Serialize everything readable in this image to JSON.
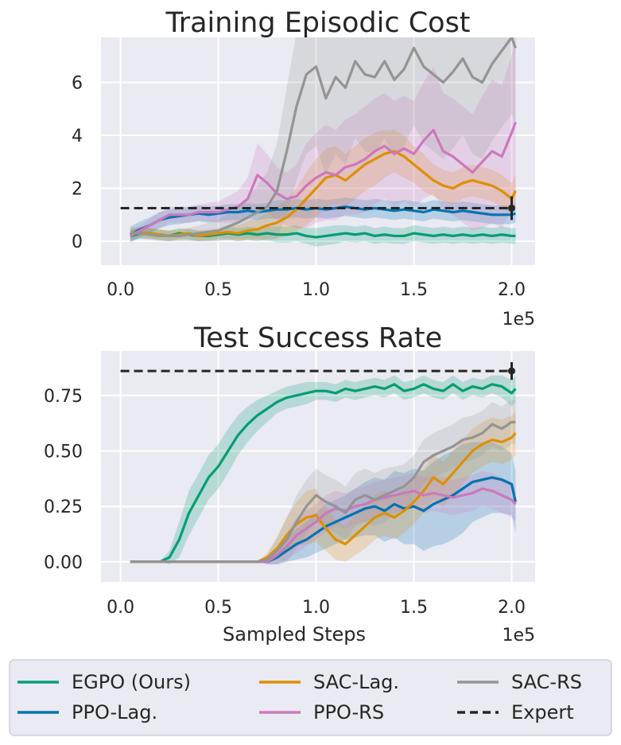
{
  "chart_data": [
    {
      "type": "line",
      "title": "Training Episodic Cost",
      "xlabel": "",
      "ylabel": "",
      "x_offset_label": "1e5",
      "xlim": [
        -0.1,
        2.12
      ],
      "ylim": [
        -0.9,
        7.7
      ],
      "x_ticks": [
        0.0,
        0.5,
        1.0,
        1.5,
        2.0
      ],
      "x_tick_labels": [
        "0.0",
        "0.5",
        "1.0",
        "1.5",
        "2.0"
      ],
      "y_ticks": [
        0,
        2,
        4,
        6
      ],
      "y_tick_labels": [
        "0",
        "2",
        "4",
        "6"
      ],
      "grid": true,
      "x": [
        0.05,
        0.1,
        0.15,
        0.2,
        0.25,
        0.3,
        0.35,
        0.4,
        0.45,
        0.5,
        0.55,
        0.6,
        0.65,
        0.7,
        0.75,
        0.8,
        0.85,
        0.9,
        0.95,
        1.0,
        1.05,
        1.1,
        1.15,
        1.2,
        1.25,
        1.3,
        1.35,
        1.4,
        1.45,
        1.5,
        1.55,
        1.6,
        1.65,
        1.7,
        1.75,
        1.8,
        1.85,
        1.9,
        1.95,
        2.0,
        2.02
      ],
      "series": [
        {
          "name": "EGPO (Ours)",
          "color": "#029e73",
          "values": [
            0.2,
            0.3,
            0.3,
            0.25,
            0.2,
            0.3,
            0.25,
            0.2,
            0.2,
            0.25,
            0.3,
            0.25,
            0.3,
            0.25,
            0.3,
            0.25,
            0.25,
            0.3,
            0.2,
            0.15,
            0.2,
            0.25,
            0.3,
            0.25,
            0.3,
            0.2,
            0.25,
            0.2,
            0.2,
            0.3,
            0.25,
            0.2,
            0.25,
            0.2,
            0.25,
            0.2,
            0.25,
            0.2,
            0.25,
            0.2,
            0.2
          ],
          "band": [
            0.2,
            0.2,
            0.2,
            0.2,
            0.2,
            0.2,
            0.2,
            0.2,
            0.2,
            0.2,
            0.25,
            0.25,
            0.25,
            0.25,
            0.25,
            0.3,
            0.3,
            0.3,
            0.3,
            0.35,
            0.35,
            0.35,
            0.3,
            0.3,
            0.3,
            0.3,
            0.3,
            0.3,
            0.3,
            0.3,
            0.3,
            0.3,
            0.3,
            0.3,
            0.3,
            0.3,
            0.3,
            0.3,
            0.3,
            0.3,
            0.3
          ]
        },
        {
          "name": "PPO-Lag.",
          "color": "#0173b2",
          "values": [
            0.25,
            0.45,
            0.6,
            0.8,
            0.9,
            0.95,
            1.0,
            1.05,
            1.0,
            1.05,
            1.1,
            1.1,
            1.15,
            1.1,
            1.15,
            1.2,
            1.2,
            1.25,
            1.2,
            1.25,
            1.2,
            1.25,
            1.3,
            1.25,
            1.2,
            1.25,
            1.2,
            1.15,
            1.2,
            1.15,
            1.1,
            1.2,
            1.15,
            1.1,
            1.15,
            1.1,
            1.05,
            1.0,
            1.0,
            1.0,
            1.05
          ],
          "band": [
            0.3,
            0.3,
            0.3,
            0.3,
            0.3,
            0.3,
            0.3,
            0.3,
            0.3,
            0.3,
            0.3,
            0.3,
            0.3,
            0.3,
            0.3,
            0.35,
            0.35,
            0.35,
            0.35,
            0.35,
            0.35,
            0.35,
            0.35,
            0.35,
            0.35,
            0.35,
            0.35,
            0.35,
            0.35,
            0.35,
            0.35,
            0.35,
            0.35,
            0.35,
            0.35,
            0.35,
            0.35,
            0.35,
            0.35,
            0.35,
            0.35
          ]
        },
        {
          "name": "SAC-Lag.",
          "color": "#de8f05",
          "values": [
            0.3,
            0.35,
            0.3,
            0.25,
            0.2,
            0.25,
            0.3,
            0.2,
            0.25,
            0.3,
            0.35,
            0.3,
            0.4,
            0.45,
            0.6,
            0.7,
            0.9,
            1.2,
            1.6,
            2.0,
            2.4,
            2.5,
            2.3,
            2.6,
            2.9,
            3.1,
            3.3,
            3.4,
            3.2,
            2.9,
            2.6,
            2.3,
            2.1,
            2.0,
            2.2,
            2.3,
            2.2,
            2.1,
            1.9,
            1.6,
            1.9
          ],
          "band": [
            0.2,
            0.2,
            0.2,
            0.2,
            0.2,
            0.2,
            0.2,
            0.2,
            0.2,
            0.2,
            0.25,
            0.3,
            0.35,
            0.4,
            0.5,
            0.6,
            0.7,
            0.8,
            1.0,
            1.1,
            1.1,
            1.1,
            1.0,
            1.0,
            1.0,
            1.0,
            0.9,
            0.8,
            0.8,
            0.7,
            0.7,
            0.6,
            0.6,
            0.6,
            0.6,
            0.6,
            0.6,
            0.6,
            0.6,
            0.6,
            0.6
          ]
        },
        {
          "name": "PPO-RS",
          "color": "#cc78bc",
          "values": [
            0.2,
            0.4,
            0.6,
            0.8,
            1.0,
            1.0,
            1.0,
            1.1,
            1.1,
            1.1,
            1.2,
            1.3,
            1.6,
            2.5,
            2.2,
            1.8,
            1.6,
            1.7,
            2.1,
            2.4,
            2.6,
            2.5,
            2.8,
            2.9,
            3.1,
            3.4,
            3.6,
            3.3,
            3.5,
            3.3,
            3.8,
            4.2,
            3.4,
            3.2,
            2.9,
            2.6,
            3.0,
            3.4,
            3.2,
            4.1,
            4.5
          ],
          "band": [
            0.2,
            0.2,
            0.25,
            0.3,
            0.3,
            0.3,
            0.3,
            0.3,
            0.35,
            0.4,
            0.5,
            0.6,
            0.8,
            1.2,
            1.1,
            1.0,
            1.0,
            1.2,
            1.6,
            1.7,
            1.8,
            1.7,
            1.8,
            1.9,
            2.0,
            2.0,
            2.0,
            2.0,
            2.0,
            2.0,
            2.2,
            2.4,
            2.2,
            2.2,
            2.2,
            2.2,
            2.5,
            2.7,
            2.7,
            2.9,
            3.2
          ]
        },
        {
          "name": "SAC-RS",
          "color": "#949494",
          "values": [
            0.3,
            0.3,
            0.25,
            0.2,
            0.2,
            0.2,
            0.25,
            0.3,
            0.35,
            0.4,
            0.55,
            0.7,
            0.9,
            1.1,
            1.3,
            1.9,
            3.4,
            5.1,
            6.3,
            6.6,
            5.4,
            6.2,
            5.8,
            6.8,
            6.3,
            6.2,
            6.8,
            6.1,
            6.5,
            7.3,
            6.6,
            6.3,
            6.0,
            6.4,
            6.9,
            6.2,
            6.0,
            6.7,
            7.2,
            7.7,
            7.3
          ],
          "band": [
            0.2,
            0.2,
            0.2,
            0.2,
            0.2,
            0.2,
            0.25,
            0.3,
            0.35,
            0.4,
            0.5,
            0.6,
            0.8,
            1.0,
            1.3,
            1.8,
            2.4,
            2.8,
            3.0,
            3.0,
            2.9,
            2.9,
            2.9,
            2.9,
            2.9,
            2.9,
            2.9,
            2.9,
            2.9,
            2.9,
            2.9,
            2.9,
            2.9,
            2.9,
            2.9,
            2.9,
            2.9,
            2.9,
            2.9,
            2.9,
            2.9
          ]
        }
      ],
      "expert": {
        "name": "Expert",
        "value": 1.25,
        "x_start": 0.0,
        "x_end": 2.0,
        "err_low": 0.8,
        "err_high": 1.7
      }
    },
    {
      "type": "line",
      "title": "Test Success Rate",
      "xlabel": "Sampled Steps",
      "ylabel": "",
      "x_offset_label": "1e5",
      "xlim": [
        -0.1,
        2.12
      ],
      "ylim": [
        -0.09,
        0.95
      ],
      "x_ticks": [
        0.0,
        0.5,
        1.0,
        1.5,
        2.0
      ],
      "x_tick_labels": [
        "0.0",
        "0.5",
        "1.0",
        "1.5",
        "2.0"
      ],
      "y_ticks": [
        0.0,
        0.25,
        0.5,
        0.75
      ],
      "y_tick_labels": [
        "0.00",
        "0.25",
        "0.50",
        "0.75"
      ],
      "grid": true,
      "x": [
        0.05,
        0.1,
        0.15,
        0.2,
        0.25,
        0.3,
        0.35,
        0.4,
        0.45,
        0.5,
        0.55,
        0.6,
        0.65,
        0.7,
        0.75,
        0.8,
        0.85,
        0.9,
        0.95,
        1.0,
        1.05,
        1.1,
        1.15,
        1.2,
        1.25,
        1.3,
        1.35,
        1.4,
        1.45,
        1.5,
        1.55,
        1.6,
        1.65,
        1.7,
        1.75,
        1.8,
        1.85,
        1.9,
        1.95,
        2.0,
        2.02
      ],
      "series": [
        {
          "name": "EGPO (Ours)",
          "color": "#029e73",
          "values": [
            0.0,
            0.0,
            0.0,
            0.0,
            0.02,
            0.1,
            0.22,
            0.3,
            0.38,
            0.43,
            0.5,
            0.57,
            0.62,
            0.66,
            0.69,
            0.72,
            0.74,
            0.75,
            0.76,
            0.77,
            0.77,
            0.76,
            0.78,
            0.77,
            0.78,
            0.79,
            0.78,
            0.8,
            0.77,
            0.78,
            0.8,
            0.78,
            0.77,
            0.8,
            0.77,
            0.79,
            0.78,
            0.8,
            0.79,
            0.76,
            0.78
          ],
          "band": [
            0.0,
            0.0,
            0.0,
            0.0,
            0.03,
            0.08,
            0.1,
            0.1,
            0.1,
            0.1,
            0.1,
            0.09,
            0.08,
            0.07,
            0.06,
            0.05,
            0.05,
            0.05,
            0.05,
            0.04,
            0.04,
            0.04,
            0.04,
            0.04,
            0.04,
            0.04,
            0.04,
            0.04,
            0.04,
            0.04,
            0.04,
            0.04,
            0.04,
            0.04,
            0.04,
            0.04,
            0.04,
            0.04,
            0.05,
            0.06,
            0.06
          ]
        },
        {
          "name": "PPO-Lag.",
          "color": "#0173b2",
          "values": [
            0.0,
            0.0,
            0.0,
            0.0,
            0.0,
            0.0,
            0.0,
            0.0,
            0.0,
            0.0,
            0.0,
            0.0,
            0.0,
            0.0,
            0.0,
            0.02,
            0.05,
            0.08,
            0.1,
            0.13,
            0.16,
            0.18,
            0.2,
            0.22,
            0.24,
            0.25,
            0.23,
            0.26,
            0.24,
            0.25,
            0.23,
            0.26,
            0.28,
            0.3,
            0.33,
            0.36,
            0.37,
            0.38,
            0.37,
            0.35,
            0.27
          ],
          "band": [
            0.0,
            0.0,
            0.0,
            0.0,
            0.0,
            0.0,
            0.0,
            0.0,
            0.0,
            0.0,
            0.0,
            0.0,
            0.0,
            0.0,
            0.01,
            0.03,
            0.05,
            0.07,
            0.08,
            0.09,
            0.1,
            0.1,
            0.1,
            0.11,
            0.12,
            0.13,
            0.14,
            0.15,
            0.16,
            0.17,
            0.18,
            0.19,
            0.2,
            0.2,
            0.2,
            0.18,
            0.17,
            0.16,
            0.15,
            0.14,
            0.14
          ]
        },
        {
          "name": "SAC-Lag.",
          "color": "#de8f05",
          "values": [
            0.0,
            0.0,
            0.0,
            0.0,
            0.0,
            0.0,
            0.0,
            0.0,
            0.0,
            0.0,
            0.0,
            0.0,
            0.0,
            0.0,
            0.02,
            0.06,
            0.12,
            0.17,
            0.2,
            0.21,
            0.15,
            0.1,
            0.08,
            0.12,
            0.16,
            0.2,
            0.22,
            0.2,
            0.23,
            0.27,
            0.32,
            0.38,
            0.35,
            0.4,
            0.45,
            0.5,
            0.53,
            0.55,
            0.54,
            0.56,
            0.58
          ],
          "band": [
            0.0,
            0.0,
            0.0,
            0.0,
            0.0,
            0.0,
            0.0,
            0.0,
            0.0,
            0.0,
            0.0,
            0.0,
            0.0,
            0.0,
            0.02,
            0.05,
            0.08,
            0.1,
            0.12,
            0.12,
            0.1,
            0.09,
            0.08,
            0.09,
            0.1,
            0.1,
            0.1,
            0.1,
            0.1,
            0.1,
            0.1,
            0.1,
            0.1,
            0.1,
            0.1,
            0.1,
            0.1,
            0.1,
            0.1,
            0.1,
            0.1
          ]
        },
        {
          "name": "PPO-RS",
          "color": "#cc78bc",
          "values": [
            0.0,
            0.0,
            0.0,
            0.0,
            0.0,
            0.0,
            0.0,
            0.0,
            0.0,
            0.0,
            0.0,
            0.0,
            0.0,
            0.0,
            0.0,
            0.03,
            0.07,
            0.12,
            0.15,
            0.18,
            0.22,
            0.24,
            0.23,
            0.25,
            0.26,
            0.28,
            0.29,
            0.3,
            0.31,
            0.32,
            0.3,
            0.31,
            0.3,
            0.29,
            0.3,
            0.31,
            0.33,
            0.32,
            0.3,
            0.28,
            0.26
          ],
          "band": [
            0.0,
            0.0,
            0.0,
            0.0,
            0.0,
            0.0,
            0.0,
            0.0,
            0.0,
            0.0,
            0.0,
            0.0,
            0.0,
            0.0,
            0.01,
            0.04,
            0.06,
            0.08,
            0.08,
            0.08,
            0.08,
            0.08,
            0.08,
            0.08,
            0.08,
            0.08,
            0.08,
            0.08,
            0.08,
            0.08,
            0.08,
            0.08,
            0.08,
            0.08,
            0.08,
            0.08,
            0.08,
            0.08,
            0.08,
            0.08,
            0.08
          ]
        },
        {
          "name": "SAC-RS",
          "color": "#949494",
          "values": [
            0.0,
            0.0,
            0.0,
            0.0,
            0.0,
            0.0,
            0.0,
            0.0,
            0.0,
            0.0,
            0.0,
            0.0,
            0.0,
            0.0,
            0.01,
            0.05,
            0.1,
            0.18,
            0.25,
            0.3,
            0.27,
            0.25,
            0.22,
            0.28,
            0.3,
            0.28,
            0.3,
            0.32,
            0.34,
            0.38,
            0.45,
            0.48,
            0.5,
            0.52,
            0.55,
            0.56,
            0.58,
            0.62,
            0.6,
            0.63,
            0.63
          ],
          "band": [
            0.0,
            0.0,
            0.0,
            0.0,
            0.0,
            0.0,
            0.0,
            0.0,
            0.0,
            0.0,
            0.0,
            0.0,
            0.0,
            0.0,
            0.02,
            0.06,
            0.1,
            0.12,
            0.12,
            0.12,
            0.12,
            0.12,
            0.12,
            0.12,
            0.12,
            0.12,
            0.12,
            0.11,
            0.1,
            0.1,
            0.1,
            0.1,
            0.1,
            0.1,
            0.1,
            0.1,
            0.1,
            0.1,
            0.1,
            0.1,
            0.1
          ]
        }
      ],
      "expert": {
        "name": "Expert",
        "value": 0.86,
        "x_start": 0.0,
        "x_end": 2.0,
        "err_low": 0.82,
        "err_high": 0.9
      }
    }
  ],
  "legend": {
    "position": "bottom",
    "entries": [
      {
        "label": "EGPO (Ours)",
        "color": "#029e73",
        "style": "solid"
      },
      {
        "label": "SAC-Lag.",
        "color": "#de8f05",
        "style": "solid"
      },
      {
        "label": "SAC-RS",
        "color": "#949494",
        "style": "solid"
      },
      {
        "label": "PPO-Lag.",
        "color": "#0173b2",
        "style": "solid"
      },
      {
        "label": "PPO-RS",
        "color": "#cc78bc",
        "style": "solid"
      },
      {
        "label": "Expert",
        "color": "#262626",
        "style": "dashed"
      }
    ]
  },
  "colors": {
    "panel_bg": "#eaeaf2",
    "grid": "#ffffff",
    "text": "#262626",
    "expert": "#262626"
  }
}
